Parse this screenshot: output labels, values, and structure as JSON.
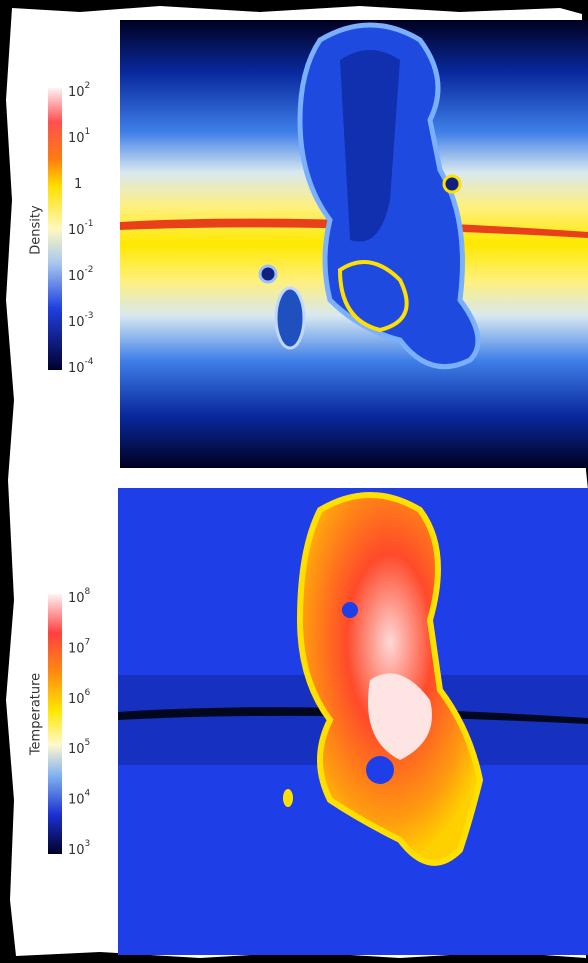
{
  "panels": [
    {
      "label": "Density",
      "ticks": [
        {
          "base": "10",
          "exponent": "2"
        },
        {
          "base": "10",
          "exponent": "1"
        },
        {
          "base": "1"
        },
        {
          "base": "10",
          "exponent": "-1"
        },
        {
          "base": "10",
          "exponent": "-2"
        },
        {
          "base": "10",
          "exponent": "-3"
        },
        {
          "base": "10",
          "exponent": "-4"
        }
      ]
    },
    {
      "label": "Temperature",
      "ticks": [
        {
          "base": "10",
          "exponent": "8"
        },
        {
          "base": "10",
          "exponent": "7"
        },
        {
          "base": "10",
          "exponent": "6"
        },
        {
          "base": "10",
          "exponent": "5"
        },
        {
          "base": "10",
          "exponent": "4"
        },
        {
          "base": "10",
          "exponent": "3"
        }
      ]
    }
  ]
}
